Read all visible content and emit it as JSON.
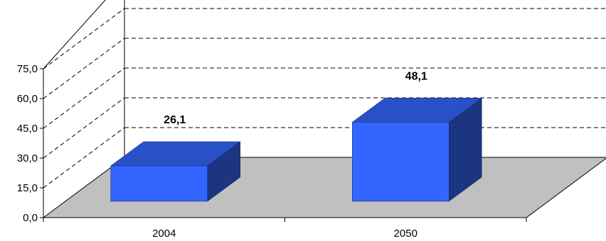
{
  "chart_data": {
    "type": "bar",
    "categories": [
      "2004",
      "2050"
    ],
    "values": [
      26.1,
      48.1
    ],
    "data_labels": [
      "26,1",
      "48,1"
    ],
    "ylim": [
      0,
      75
    ],
    "yticks": [
      "0,0",
      "15,0",
      "30,0",
      "45,0",
      "60,0",
      "75,0"
    ],
    "three_d": true,
    "grid": "dashed horizontal",
    "legend": "none",
    "colors": {
      "bar_front": "#3366ff",
      "bar_top": "#2a50c8",
      "bar_side": "#1c3580",
      "floor": "#c0c0c0",
      "outline": "#000000"
    }
  }
}
